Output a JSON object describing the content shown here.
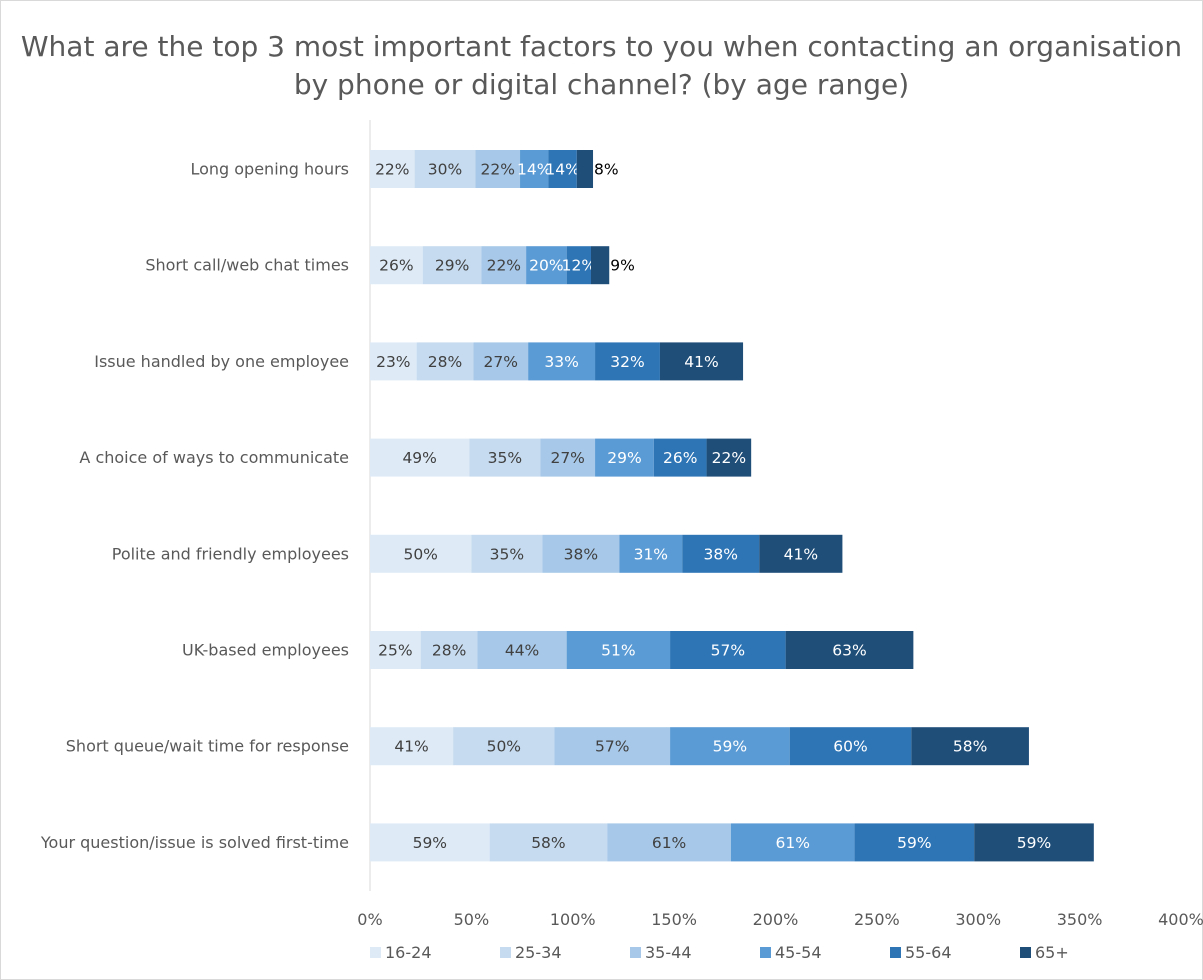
{
  "chart_data": {
    "type": "bar",
    "orientation": "horizontal",
    "stacked": true,
    "title": "What are the top 3 most important factors to you when contacting an organisation by phone or digital channel? (by age range)",
    "xlabel": "",
    "ylabel": "",
    "xlim": [
      0,
      400
    ],
    "x_ticks": [
      "0%",
      "50%",
      "100%",
      "150%",
      "200%",
      "250%",
      "300%",
      "350%",
      "400%"
    ],
    "grid": false,
    "legend_position": "bottom",
    "categories": [
      "Long opening hours",
      "Short call/web chat times",
      "Issue handled by one employee",
      "A choice of ways to communicate",
      "Polite and friendly employees",
      "UK-based employees",
      "Short queue/wait time for response",
      "Your question/issue is solved first-time"
    ],
    "series": [
      {
        "name": "16-24",
        "color": "#deebf7",
        "label_color": "#404040",
        "values": [
          22,
          26,
          23,
          49,
          50,
          25,
          41,
          59
        ]
      },
      {
        "name": "25-34",
        "color": "#c6dbef",
        "label_color": "#404040",
        "values": [
          30,
          29,
          28,
          35,
          35,
          28,
          50,
          58
        ]
      },
      {
        "name": "35-44",
        "color": "#a7c8e8",
        "label_color": "#404040",
        "values": [
          22,
          22,
          27,
          27,
          38,
          44,
          57,
          61
        ]
      },
      {
        "name": "45-54",
        "color": "#5b9bd5",
        "label_color": "#ffffff",
        "values": [
          14,
          20,
          33,
          29,
          31,
          51,
          59,
          61
        ]
      },
      {
        "name": "55-64",
        "color": "#2e75b6",
        "label_color": "#ffffff",
        "values": [
          14,
          12,
          32,
          26,
          38,
          57,
          60,
          59
        ]
      },
      {
        "name": "65+",
        "color": "#1f4e79",
        "label_color": "#ffffff",
        "values": [
          8,
          9,
          41,
          22,
          41,
          63,
          58,
          59
        ]
      }
    ],
    "data_label_suffix": "%",
    "axis_color": "#d9d9d9"
  }
}
